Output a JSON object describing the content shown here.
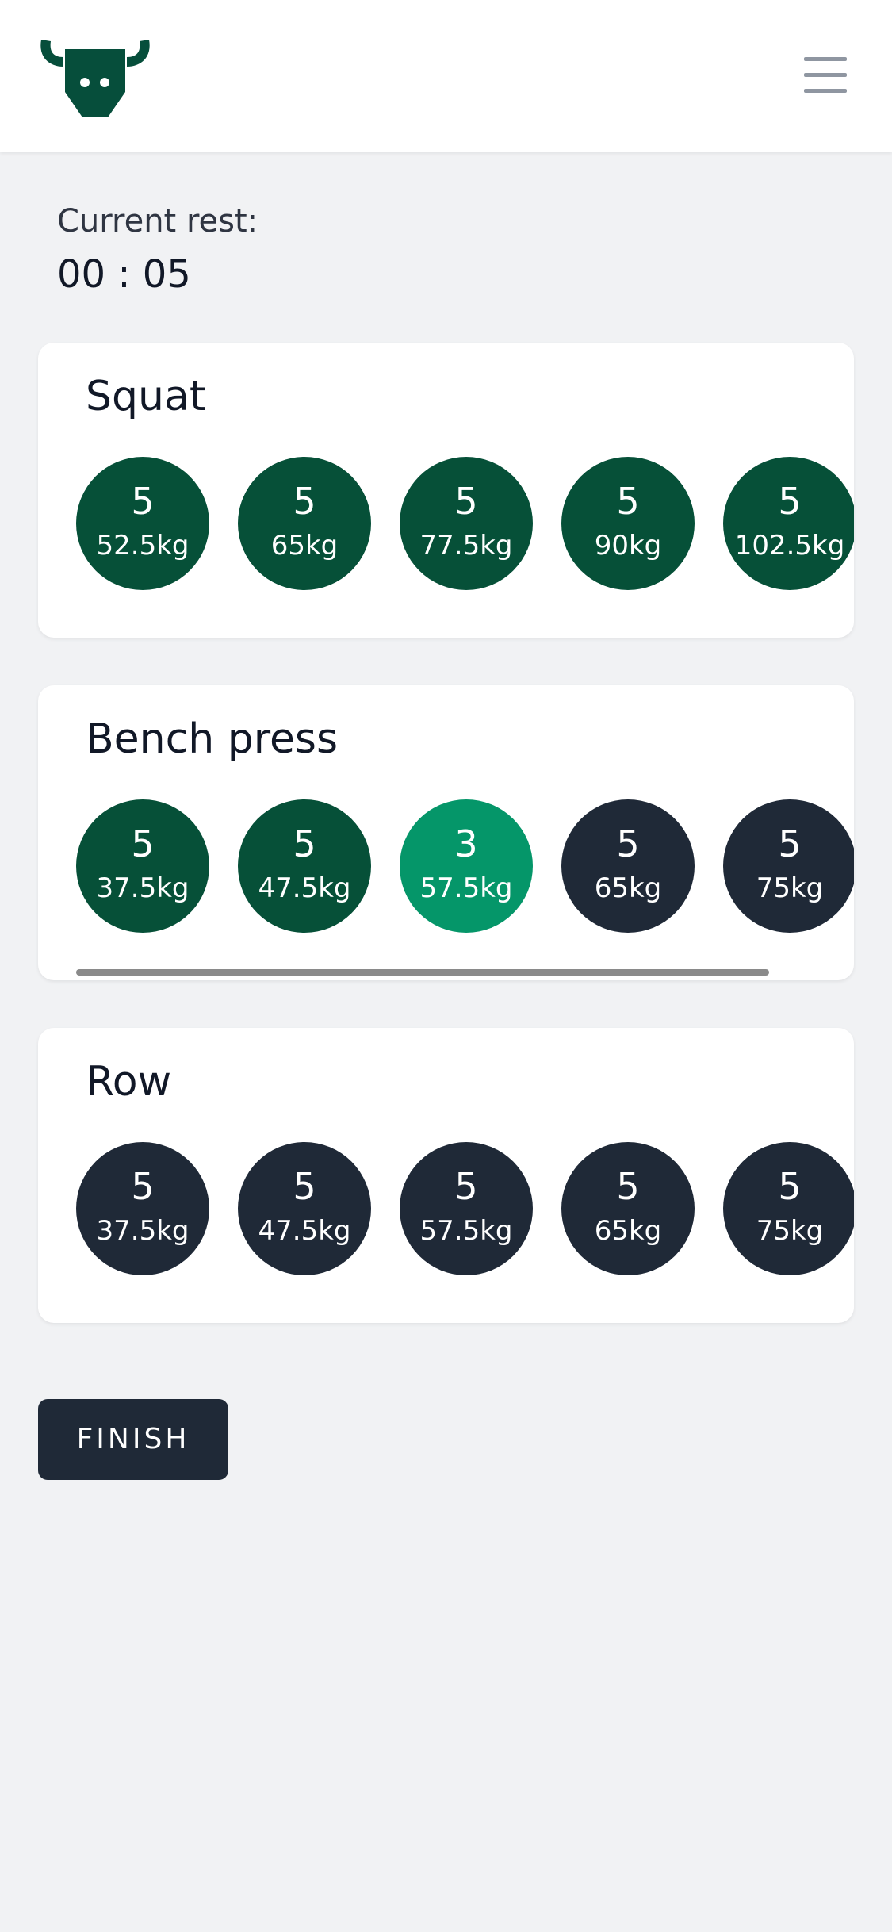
{
  "colors": {
    "brand": "#064e3b",
    "completed": "#065038",
    "active": "#059669",
    "pending": "#1f2937",
    "background": "#f1f2f4"
  },
  "header": {
    "logo_icon": "bull-head-icon",
    "menu_icon": "hamburger-menu-icon"
  },
  "rest": {
    "label": "Current rest:",
    "time": "00 : 05"
  },
  "exercises": [
    {
      "name": "Squat",
      "sets": [
        {
          "reps": "5",
          "weight": "52.5kg",
          "status": "completed"
        },
        {
          "reps": "5",
          "weight": "65kg",
          "status": "completed"
        },
        {
          "reps": "5",
          "weight": "77.5kg",
          "status": "completed"
        },
        {
          "reps": "5",
          "weight": "90kg",
          "status": "completed"
        },
        {
          "reps": "5",
          "weight": "102.5kg",
          "status": "completed"
        }
      ]
    },
    {
      "name": "Bench press",
      "sets": [
        {
          "reps": "5",
          "weight": "37.5kg",
          "status": "completed"
        },
        {
          "reps": "5",
          "weight": "47.5kg",
          "status": "completed"
        },
        {
          "reps": "3",
          "weight": "57.5kg",
          "status": "active"
        },
        {
          "reps": "5",
          "weight": "65kg",
          "status": "pending"
        },
        {
          "reps": "5",
          "weight": "75kg",
          "status": "pending"
        }
      ]
    },
    {
      "name": "Row",
      "sets": [
        {
          "reps": "5",
          "weight": "37.5kg",
          "status": "pending"
        },
        {
          "reps": "5",
          "weight": "47.5kg",
          "status": "pending"
        },
        {
          "reps": "5",
          "weight": "57.5kg",
          "status": "pending"
        },
        {
          "reps": "5",
          "weight": "65kg",
          "status": "pending"
        },
        {
          "reps": "5",
          "weight": "75kg",
          "status": "pending"
        }
      ]
    }
  ],
  "finish_label": "FINISH"
}
